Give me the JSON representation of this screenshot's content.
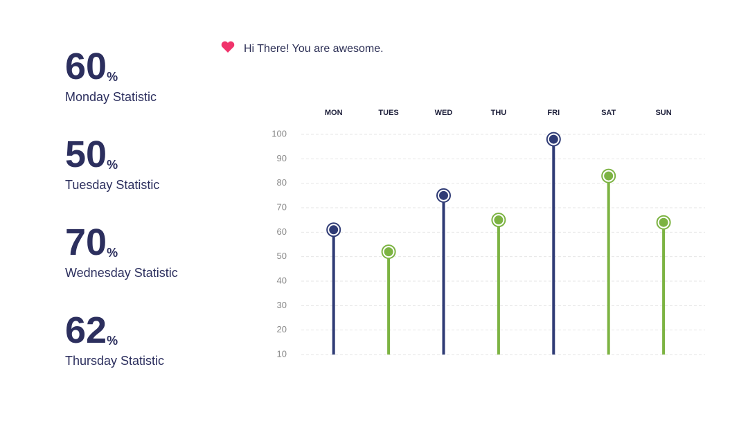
{
  "header": {
    "greeting": "Hi There! You are awesome."
  },
  "stats": [
    {
      "value": 60,
      "unit": "%",
      "label": "Monday Statistic"
    },
    {
      "value": 50,
      "unit": "%",
      "label": "Tuesday Statistic"
    },
    {
      "value": 70,
      "unit": "%",
      "label": "Wednesday Statistic"
    },
    {
      "value": 62,
      "unit": "%",
      "label": "Thursday Statistic"
    }
  ],
  "chart_data": {
    "type": "lollipop",
    "categories": [
      "MON",
      "TUES",
      "WED",
      "THU",
      "FRI",
      "SAT",
      "SUN"
    ],
    "values": [
      61,
      52,
      75,
      65,
      98,
      83,
      64
    ],
    "colors": [
      "#2f3b75",
      "#7cb342",
      "#2f3b75",
      "#7cb342",
      "#2f3b75",
      "#7cb342",
      "#7cb342"
    ],
    "ylim": [
      10,
      100
    ],
    "yticks": [
      10,
      20,
      30,
      40,
      50,
      60,
      70,
      80,
      90,
      100
    ],
    "grid": true
  }
}
